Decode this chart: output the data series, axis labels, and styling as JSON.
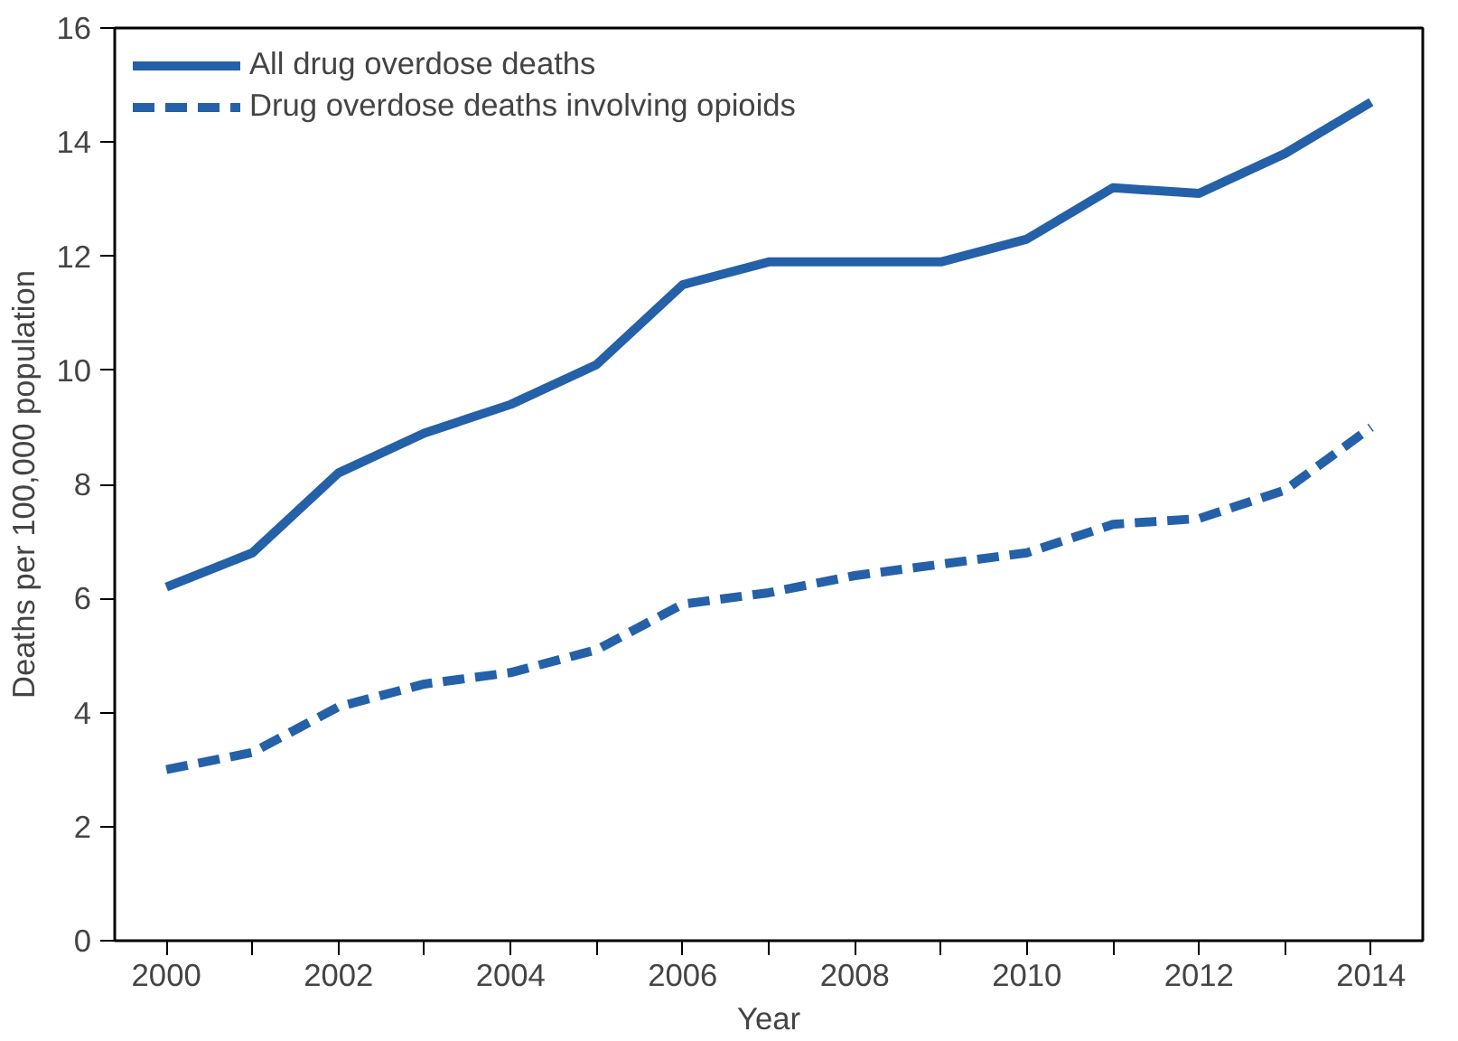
{
  "chart_data": {
    "type": "line",
    "xlabel": "Year",
    "ylabel": "Deaths per 100,000 population",
    "x": [
      2000,
      2001,
      2002,
      2003,
      2004,
      2005,
      2006,
      2007,
      2008,
      2009,
      2010,
      2011,
      2012,
      2013,
      2014
    ],
    "series": [
      {
        "name": "All drug overdose deaths",
        "color": "#2461a8",
        "line_style": "solid",
        "values": [
          6.2,
          6.8,
          8.2,
          8.9,
          9.4,
          10.1,
          11.5,
          11.9,
          11.9,
          11.9,
          12.3,
          13.2,
          13.1,
          13.8,
          14.7
        ]
      },
      {
        "name": "Drug overdose deaths involving opioids",
        "color": "#2461a8",
        "line_style": "dashed",
        "values": [
          3.0,
          3.3,
          4.1,
          4.5,
          4.7,
          5.1,
          5.9,
          6.1,
          6.4,
          6.6,
          6.8,
          7.3,
          7.4,
          7.9,
          9.0
        ]
      }
    ],
    "xlim": [
      1999.4,
      2014.6
    ],
    "ylim": [
      0,
      16
    ],
    "xticks": [
      2000,
      {
        "value": 2001,
        "label": null
      },
      2002,
      {
        "value": 2003,
        "label": null
      },
      2004,
      {
        "value": 2005,
        "label": null
      },
      2006,
      {
        "value": 2007,
        "label": null
      },
      2008,
      {
        "value": 2009,
        "label": null
      },
      2010,
      {
        "value": 2011,
        "label": null
      },
      2012,
      {
        "value": 2013,
        "label": null
      },
      2014
    ],
    "yticks": [
      0,
      2,
      4,
      6,
      8,
      10,
      12,
      14,
      16
    ],
    "grid": false,
    "legend": "top left",
    "marker": "none"
  }
}
